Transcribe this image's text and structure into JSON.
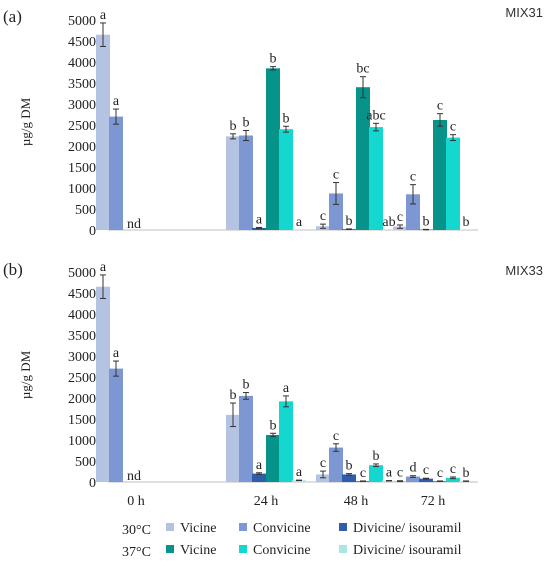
{
  "colors": {
    "vicine30": "#B4C3E1",
    "convicine30": "#7C97D1",
    "divicine30": "#2E5DA9",
    "vicine37": "#08938A",
    "convicine37": "#14D8CF",
    "divicine37": "#A9E6E4",
    "axis": "#BFBFBF",
    "error": "#333333"
  },
  "x_tick_labels": [
    "0 h",
    "24 h",
    "48 h",
    "72 h"
  ],
  "legend": {
    "row30": {
      "temp": "30°C",
      "items": [
        "Vicine",
        "Convicine",
        "Divicine/ isouramil"
      ]
    },
    "row37": {
      "temp": "37°C",
      "items": [
        "Vicine",
        "Convicine",
        "Divicine/ isouramil"
      ]
    }
  },
  "chart_data": [
    {
      "type": "bar",
      "panel_label": "(a)",
      "title": "MIX31",
      "ylabel": "µg/g DM",
      "ylim": [
        0,
        5000
      ],
      "yticks": [
        0,
        500,
        1000,
        1500,
        2000,
        2500,
        3000,
        3500,
        4000,
        4500,
        5000
      ],
      "categories": [
        "0 h",
        "24 h",
        "48 h",
        "72 h"
      ],
      "series": [
        {
          "name": "Vicine",
          "temp": "30°C",
          "color_key": "vicine30",
          "values": [
            4650,
            2230,
            90,
            80
          ],
          "errors": [
            280,
            60,
            50,
            40
          ],
          "letters": [
            "a",
            "b",
            "c",
            "c"
          ]
        },
        {
          "name": "Convicine",
          "temp": "30°C",
          "color_key": "convicine30",
          "values": [
            2700,
            2250,
            870,
            850
          ],
          "errors": [
            180,
            120,
            260,
            230
          ],
          "letters": [
            "a",
            "b",
            "c",
            "c"
          ]
        },
        {
          "name": "Divicine/ isouramil",
          "temp": "30°C",
          "color_key": "divicine30",
          "values": [
            0,
            50,
            20,
            10
          ],
          "errors": [
            0,
            10,
            5,
            5
          ],
          "letters": [
            "nd",
            "a",
            "b",
            "b"
          ]
        },
        {
          "name": "Vicine",
          "temp": "37°C",
          "color_key": "vicine37",
          "values": [
            null,
            3850,
            3400,
            2620
          ],
          "errors": [
            0,
            40,
            250,
            150
          ],
          "letters": [
            "",
            "b",
            "bc",
            "c"
          ]
        },
        {
          "name": "Convicine",
          "temp": "37°C",
          "color_key": "convicine37",
          "values": [
            null,
            2400,
            2450,
            2200
          ],
          "errors": [
            0,
            70,
            90,
            70
          ],
          "letters": [
            "",
            "b",
            "abc",
            "c"
          ]
        },
        {
          "name": "Divicine/ isouramil",
          "temp": "37°C",
          "color_key": "divicine37",
          "values": [
            null,
            5,
            5,
            5
          ],
          "errors": [
            0,
            0,
            0,
            0
          ],
          "letters": [
            "",
            "a",
            "ab",
            "b"
          ]
        }
      ]
    },
    {
      "type": "bar",
      "panel_label": "(b)",
      "title": "MIX33",
      "ylabel": "µg/g DM",
      "ylim": [
        0,
        5000
      ],
      "yticks": [
        0,
        500,
        1000,
        1500,
        2000,
        2500,
        3000,
        3500,
        4000,
        4500,
        5000
      ],
      "categories": [
        "0 h",
        "24 h",
        "48 h",
        "72 h"
      ],
      "series": [
        {
          "name": "Vicine",
          "temp": "30°C",
          "color_key": "vicine30",
          "values": [
            4650,
            1600,
            180,
            20
          ],
          "errors": [
            280,
            280,
            80,
            10
          ],
          "letters": [
            "a",
            "b",
            "c",
            "c"
          ]
        },
        {
          "name": "Convicine",
          "temp": "30°C",
          "color_key": "convicine30",
          "values": [
            2700,
            2050,
            820,
            130
          ],
          "errors": [
            180,
            80,
            90,
            20
          ],
          "letters": [
            "a",
            "b",
            "c",
            "d"
          ]
        },
        {
          "name": "Divicine/ isouramil",
          "temp": "30°C",
          "color_key": "divicine30",
          "values": [
            0,
            200,
            180,
            80
          ],
          "errors": [
            0,
            20,
            20,
            10
          ],
          "letters": [
            "nd",
            "a",
            "b",
            "c"
          ]
        },
        {
          "name": "Vicine",
          "temp": "37°C",
          "color_key": "vicine37",
          "values": [
            null,
            1120,
            20,
            20
          ],
          "errors": [
            0,
            40,
            5,
            5
          ],
          "letters": [
            "",
            "b",
            "c",
            "c"
          ]
        },
        {
          "name": "Convicine",
          "temp": "37°C",
          "color_key": "convicine37",
          "values": [
            null,
            1920,
            400,
            100
          ],
          "errors": [
            0,
            130,
            30,
            20
          ],
          "letters": [
            "",
            "a",
            "b",
            "c"
          ]
        },
        {
          "name": "Divicine/ isouramil",
          "temp": "37°C",
          "color_key": "divicine37",
          "values": [
            null,
            40,
            30,
            20
          ],
          "errors": [
            0,
            5,
            5,
            5
          ],
          "letters": [
            "",
            "a",
            "a",
            "b"
          ]
        }
      ]
    }
  ]
}
